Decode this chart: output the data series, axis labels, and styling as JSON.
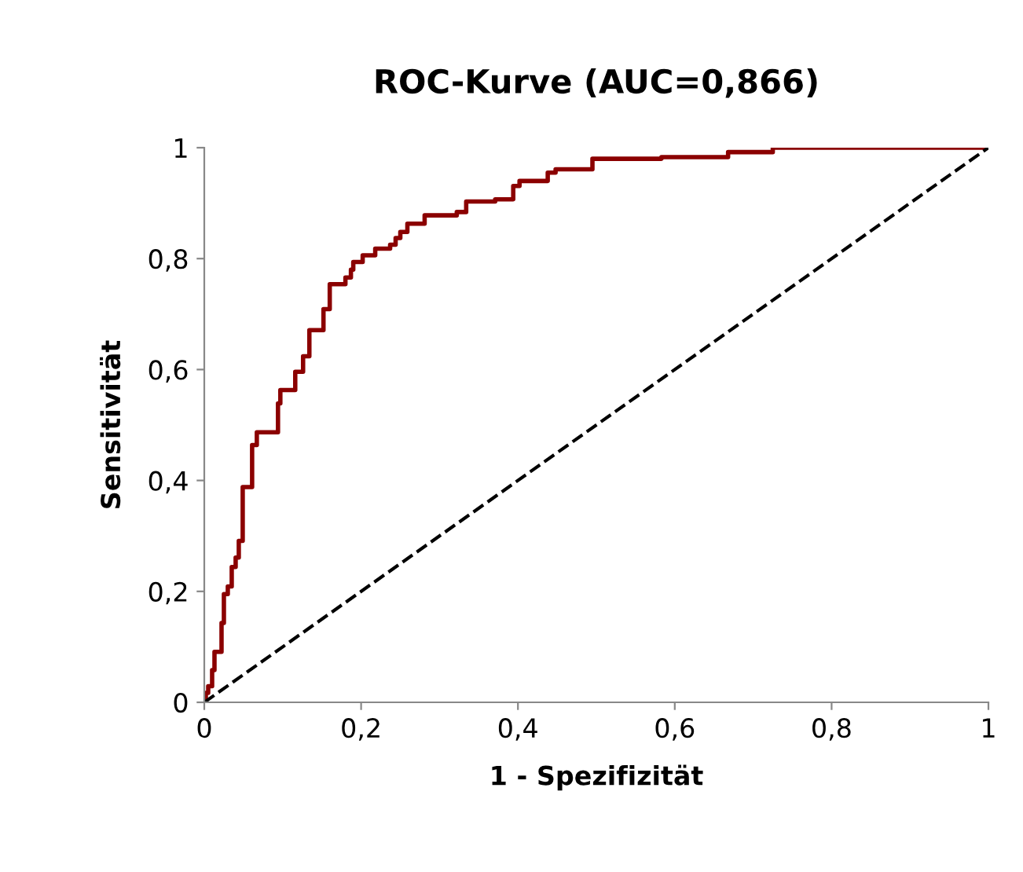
{
  "chart_data": {
    "type": "step",
    "title": "ROC-Kurve (AUC=0,866)",
    "xlabel": "1 - Spezifizität",
    "ylabel": "Sensitivität",
    "xlim": [
      0,
      1
    ],
    "ylim": [
      0,
      1
    ],
    "xticks": [
      {
        "value": 0,
        "label": "0"
      },
      {
        "value": 0.2,
        "label": "0,2"
      },
      {
        "value": 0.4,
        "label": "0,4"
      },
      {
        "value": 0.6,
        "label": "0,6"
      },
      {
        "value": 0.8,
        "label": "0,8"
      },
      {
        "value": 1,
        "label": "1"
      }
    ],
    "yticks": [
      {
        "value": 0,
        "label": "0"
      },
      {
        "value": 0.2,
        "label": "0,2"
      },
      {
        "value": 0.4,
        "label": "0,4"
      },
      {
        "value": 0.6,
        "label": "0,6"
      },
      {
        "value": 0.8,
        "label": "0,8"
      },
      {
        "value": 1,
        "label": "1"
      }
    ],
    "grid": false,
    "legend": false,
    "series": [
      {
        "color": "#8b0000",
        "x": [
          0,
          0.002,
          0.005,
          0.01,
          0.013,
          0.022,
          0.025,
          0.03,
          0.035,
          0.04,
          0.044,
          0.049,
          0.061,
          0.067,
          0.094,
          0.097,
          0.116,
          0.126,
          0.134,
          0.152,
          0.16,
          0.18,
          0.187,
          0.19,
          0.202,
          0.218,
          0.237,
          0.244,
          0.25,
          0.259,
          0.281,
          0.322,
          0.334,
          0.371,
          0.394,
          0.402,
          0.438,
          0.448,
          0.495,
          0.583,
          0.668,
          0.725,
          1.0
        ],
        "values": [
          0,
          0.017,
          0.029,
          0.058,
          0.091,
          0.143,
          0.195,
          0.209,
          0.244,
          0.261,
          0.291,
          0.388,
          0.464,
          0.487,
          0.539,
          0.563,
          0.596,
          0.624,
          0.671,
          0.709,
          0.754,
          0.766,
          0.78,
          0.794,
          0.806,
          0.818,
          0.825,
          0.837,
          0.848,
          0.863,
          0.878,
          0.884,
          0.903,
          0.907,
          0.931,
          0.94,
          0.955,
          0.961,
          0.98,
          0.983,
          0.992,
          1.0,
          1.0
        ]
      },
      {
        "type": "line",
        "color": "#000000",
        "line_style": "dashed",
        "x": [
          0,
          1
        ],
        "values": [
          0,
          1
        ]
      }
    ]
  }
}
